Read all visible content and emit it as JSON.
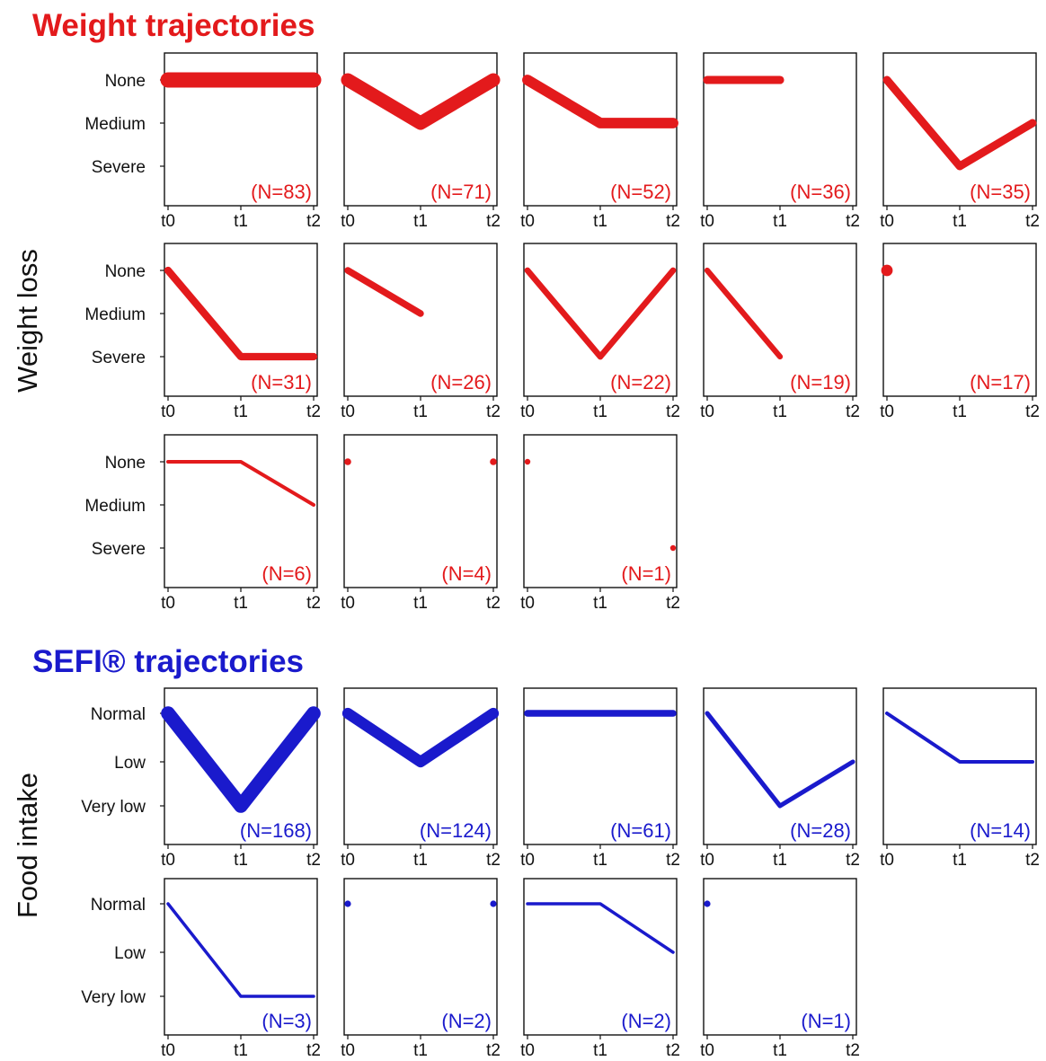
{
  "colors": {
    "weight": "#e31a1c",
    "sefi": "#1a1acc",
    "axis": "#111111"
  },
  "chart_data": [
    {
      "type": "line",
      "title": "Weight trajectories",
      "ylabel": "Weight loss",
      "x_ticks": [
        "t0",
        "t1",
        "t2"
      ],
      "y_ticks": [
        "None",
        "Medium",
        "Severe"
      ],
      "panels": [
        {
          "n": 83,
          "label": "(N=83)",
          "values": [
            "None",
            "None",
            "None"
          ]
        },
        {
          "n": 71,
          "label": "(N=71)",
          "values": [
            "None",
            "Medium",
            "None"
          ]
        },
        {
          "n": 52,
          "label": "(N=52)",
          "values": [
            "None",
            "Medium",
            "Medium"
          ]
        },
        {
          "n": 36,
          "label": "(N=36)",
          "values": [
            "None",
            "None",
            null
          ]
        },
        {
          "n": 35,
          "label": "(N=35)",
          "values": [
            "None",
            "Severe",
            "Medium"
          ]
        },
        {
          "n": 31,
          "label": "(N=31)",
          "values": [
            "None",
            "Severe",
            "Severe"
          ]
        },
        {
          "n": 26,
          "label": "(N=26)",
          "values": [
            "None",
            "Medium",
            null
          ]
        },
        {
          "n": 22,
          "label": "(N=22)",
          "values": [
            "None",
            "Severe",
            "None"
          ]
        },
        {
          "n": 19,
          "label": "(N=19)",
          "values": [
            "None",
            "Severe",
            null
          ]
        },
        {
          "n": 17,
          "label": "(N=17)",
          "values": [
            "None",
            null,
            null
          ]
        },
        {
          "n": 6,
          "label": "(N=6)",
          "values": [
            "None",
            "None",
            "Medium"
          ]
        },
        {
          "n": 4,
          "label": "(N=4)",
          "values": [
            "None",
            null,
            "None"
          ]
        },
        {
          "n": 1,
          "label": "(N=1)",
          "values": [
            "None",
            null,
            "Severe"
          ]
        }
      ]
    },
    {
      "type": "line",
      "title": "SEFI® trajectories",
      "ylabel": "Food intake",
      "x_ticks": [
        "t0",
        "t1",
        "t2"
      ],
      "y_ticks": [
        "Normal",
        "Low",
        "Very low"
      ],
      "panels": [
        {
          "n": 168,
          "label": "(N=168)",
          "values": [
            "Normal",
            "Very low",
            "Normal"
          ]
        },
        {
          "n": 124,
          "label": "(N=124)",
          "values": [
            "Normal",
            "Low",
            "Normal"
          ]
        },
        {
          "n": 61,
          "label": "(N=61)",
          "values": [
            "Normal",
            "Normal",
            "Normal"
          ]
        },
        {
          "n": 28,
          "label": "(N=28)",
          "values": [
            "Normal",
            "Very low",
            "Low"
          ]
        },
        {
          "n": 14,
          "label": "(N=14)",
          "values": [
            "Normal",
            "Low",
            "Low"
          ]
        },
        {
          "n": 3,
          "label": "(N=3)",
          "values": [
            "Normal",
            "Very low",
            "Very low"
          ]
        },
        {
          "n": 2,
          "label": "(N=2)",
          "values": [
            "Normal",
            null,
            "Normal"
          ]
        },
        {
          "n": 2,
          "label": "(N=2)",
          "values": [
            "Normal",
            "Normal",
            "Low"
          ]
        },
        {
          "n": 1,
          "label": "(N=1)",
          "values": [
            "Normal",
            null,
            null
          ]
        }
      ]
    }
  ]
}
